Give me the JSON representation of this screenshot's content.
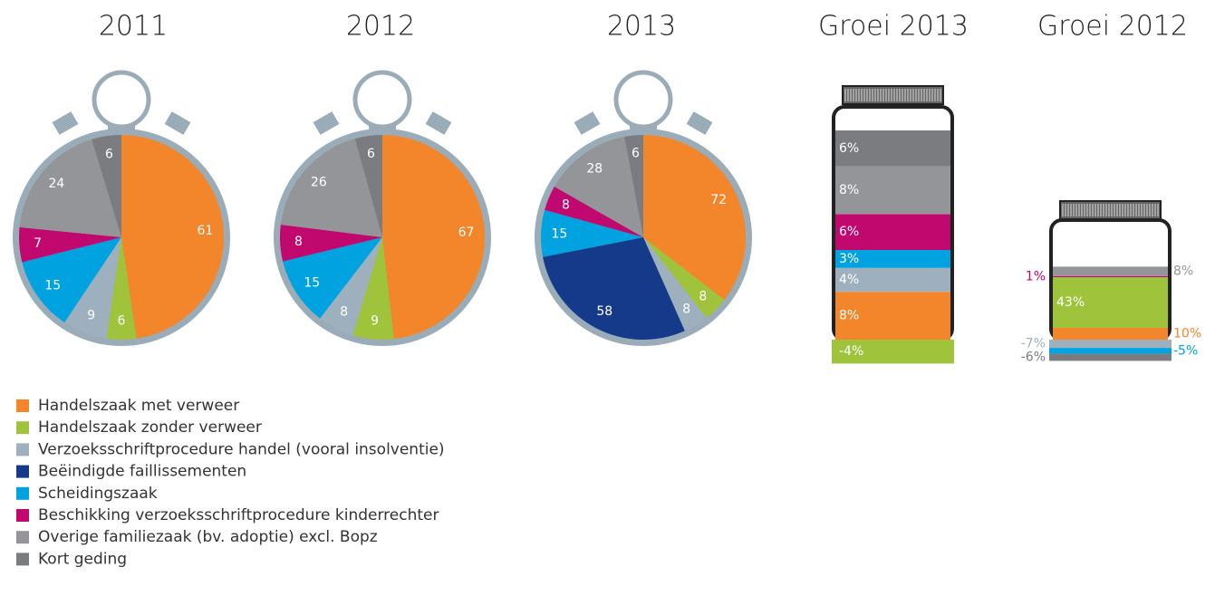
{
  "legend": [
    {
      "name": "Handelszaak met verweer",
      "color": "#f3852a"
    },
    {
      "name": "Handelszaak zonder verweer",
      "color": "#9fc33b"
    },
    {
      "name": "Verzoeksschriftprocedure handel (vooral insolventie)",
      "color": "#9eb0bd"
    },
    {
      "name": "Beëindigde faillissementen",
      "color": "#163a8a"
    },
    {
      "name": "Scheidingszaak",
      "color": "#00a3e0"
    },
    {
      "name": "Beschikking verzoeksschriftprocedure kinderrechter",
      "color": "#c0086f"
    },
    {
      "name": "Overige familiezaak (bv. adoptie) excl. Bopz",
      "color": "#939598"
    },
    {
      "name": "Kort geding",
      "color": "#7b7c80"
    }
  ],
  "chart_data": [
    {
      "type": "pie",
      "title": "2011",
      "values": [
        61,
        6,
        9,
        null,
        15,
        7,
        24,
        6
      ]
    },
    {
      "type": "pie",
      "title": "2012",
      "values": [
        67,
        9,
        8,
        null,
        15,
        8,
        26,
        6
      ]
    },
    {
      "type": "pie",
      "title": "2013",
      "values": [
        72,
        8,
        8,
        58,
        15,
        8,
        28,
        6
      ]
    },
    {
      "type": "bar",
      "stacked": true,
      "title": "Groei 2013",
      "values": [
        8,
        -4,
        4,
        null,
        3,
        6,
        8,
        6
      ],
      "value_labels": [
        "8%",
        "-4%",
        "4%",
        null,
        "3%",
        "6%",
        "8%",
        "6%"
      ]
    },
    {
      "type": "bar",
      "stacked": true,
      "title": "Groei 2012",
      "values": [
        10,
        43,
        -7,
        null,
        -5,
        1,
        8,
        -6
      ],
      "value_labels": [
        "10%",
        "43%",
        "-7%",
        null,
        "-5%",
        "1%",
        "8%",
        "-6%"
      ]
    }
  ]
}
